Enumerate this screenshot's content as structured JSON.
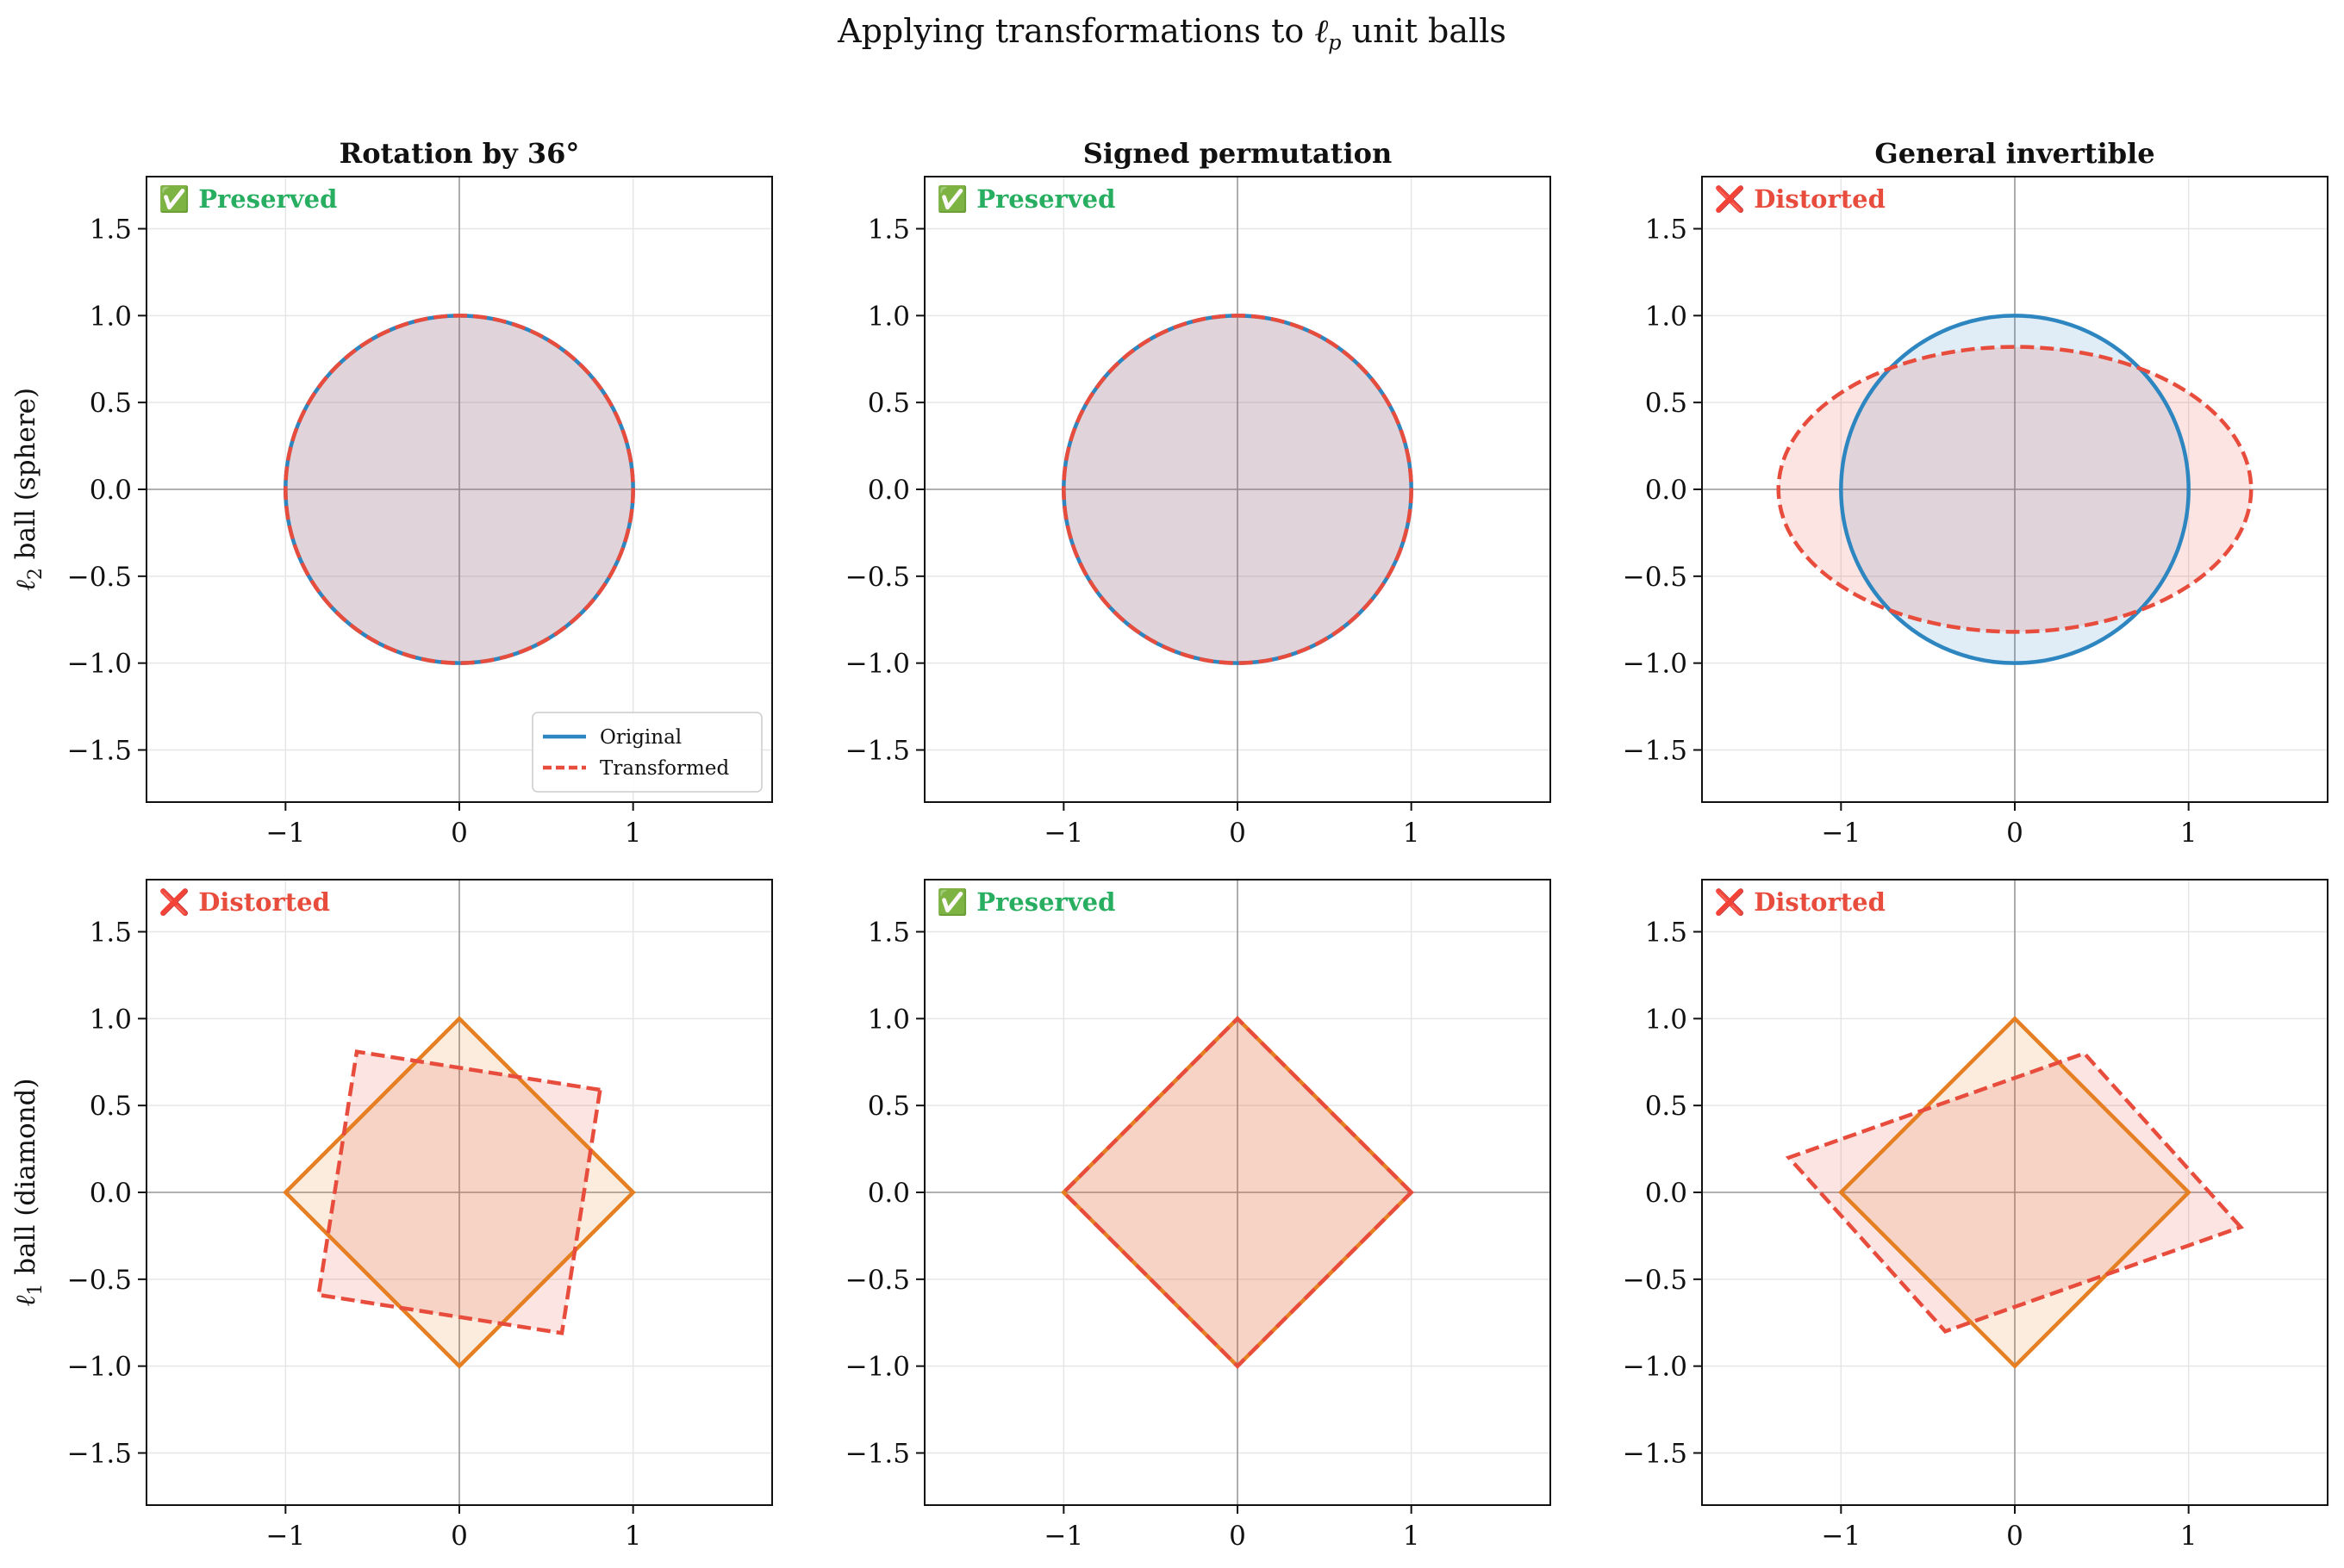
{
  "suptitle": {
    "prefix": "Applying transformations to ",
    "ell": "ℓ",
    "sub": "p",
    "suffix": " unit balls"
  },
  "columns": [
    "Rotation by 36°",
    "Signed permutation",
    "General invertible"
  ],
  "rows": [
    {
      "label_prefix": "ℓ",
      "label_sub": "2",
      "label_suffix": " ball (sphere)",
      "shape": "circle"
    },
    {
      "label_prefix": "ℓ",
      "label_sub": "1",
      "label_suffix": " ball (diamond)",
      "shape": "diamond"
    }
  ],
  "legend": {
    "original": "Original",
    "transformed": "Transformed"
  },
  "colors": {
    "circle": "#2e86c1",
    "diamond": "#e67e22",
    "transformed": "#e74c3c",
    "preserved": "#27ae60",
    "distorted": "#e74c3c"
  },
  "chart_data": [
    {
      "type": "line",
      "row": 0,
      "col": 0,
      "title": "Rotation by 36°",
      "ylabel": "ℓ2 ball (sphere)",
      "status": "Preserved",
      "status_icon": "✅",
      "xlim": [
        -1.8,
        1.8
      ],
      "ylim": [
        -1.8,
        1.8
      ],
      "xticks": [
        -1,
        0,
        1
      ],
      "yticks": [
        -1.5,
        -1.0,
        -0.5,
        0.0,
        0.5,
        1.0,
        1.5
      ],
      "grid": true,
      "legend": "lower right",
      "series": [
        {
          "name": "Original",
          "kind": "ellipse",
          "center": [
            0,
            0
          ],
          "rx": 1.0,
          "ry": 1.0,
          "style": "solid"
        },
        {
          "name": "Transformed",
          "kind": "ellipse",
          "center": [
            0,
            0
          ],
          "rx": 1.0,
          "ry": 1.0,
          "style": "dashed"
        }
      ]
    },
    {
      "type": "line",
      "row": 0,
      "col": 1,
      "title": "Signed permutation",
      "status": "Preserved",
      "status_icon": "✅",
      "xlim": [
        -1.8,
        1.8
      ],
      "ylim": [
        -1.8,
        1.8
      ],
      "xticks": [
        -1,
        0,
        1
      ],
      "yticks": [
        -1.5,
        -1.0,
        -0.5,
        0.0,
        0.5,
        1.0,
        1.5
      ],
      "grid": true,
      "series": [
        {
          "name": "Original",
          "kind": "ellipse",
          "center": [
            0,
            0
          ],
          "rx": 1.0,
          "ry": 1.0,
          "style": "solid"
        },
        {
          "name": "Transformed",
          "kind": "ellipse",
          "center": [
            0,
            0
          ],
          "rx": 1.0,
          "ry": 1.0,
          "style": "dashed"
        }
      ]
    },
    {
      "type": "line",
      "row": 0,
      "col": 2,
      "title": "General invertible",
      "status": "Distorted",
      "status_icon": "❌",
      "xlim": [
        -1.8,
        1.8
      ],
      "ylim": [
        -1.8,
        1.8
      ],
      "xticks": [
        -1,
        0,
        1
      ],
      "yticks": [
        -1.5,
        -1.0,
        -0.5,
        0.0,
        0.5,
        1.0,
        1.5
      ],
      "grid": true,
      "series": [
        {
          "name": "Original",
          "kind": "ellipse",
          "center": [
            0,
            0
          ],
          "rx": 1.0,
          "ry": 1.0,
          "style": "solid"
        },
        {
          "name": "Transformed",
          "kind": "ellipse",
          "center": [
            0,
            0
          ],
          "rx": 1.36,
          "ry": 0.82,
          "style": "dashed"
        }
      ]
    },
    {
      "type": "line",
      "row": 1,
      "col": 0,
      "ylabel": "ℓ1 ball (diamond)",
      "status": "Distorted",
      "status_icon": "❌",
      "xlim": [
        -1.8,
        1.8
      ],
      "ylim": [
        -1.8,
        1.8
      ],
      "xticks": [
        -1,
        0,
        1
      ],
      "yticks": [
        -1.5,
        -1.0,
        -0.5,
        0.0,
        0.5,
        1.0,
        1.5
      ],
      "grid": true,
      "series": [
        {
          "name": "Original",
          "kind": "polygon",
          "points": [
            [
              1,
              0
            ],
            [
              0,
              1
            ],
            [
              -1,
              0
            ],
            [
              0,
              -1
            ]
          ],
          "style": "solid"
        },
        {
          "name": "Transformed",
          "kind": "polygon",
          "points": [
            [
              0.81,
              0.59
            ],
            [
              -0.59,
              0.81
            ],
            [
              -0.81,
              -0.59
            ],
            [
              0.59,
              -0.81
            ]
          ],
          "style": "dashed"
        }
      ]
    },
    {
      "type": "line",
      "row": 1,
      "col": 1,
      "status": "Preserved",
      "status_icon": "✅",
      "xlim": [
        -1.8,
        1.8
      ],
      "ylim": [
        -1.8,
        1.8
      ],
      "xticks": [
        -1,
        0,
        1
      ],
      "yticks": [
        -1.5,
        -1.0,
        -0.5,
        0.0,
        0.5,
        1.0,
        1.5
      ],
      "grid": true,
      "series": [
        {
          "name": "Original",
          "kind": "polygon",
          "points": [
            [
              1,
              0
            ],
            [
              0,
              1
            ],
            [
              -1,
              0
            ],
            [
              0,
              -1
            ]
          ],
          "style": "solid"
        },
        {
          "name": "Transformed",
          "kind": "polygon",
          "points": [
            [
              1,
              0
            ],
            [
              0,
              1
            ],
            [
              -1,
              0
            ],
            [
              0,
              -1
            ]
          ],
          "style": "dashed"
        }
      ]
    },
    {
      "type": "line",
      "row": 1,
      "col": 2,
      "status": "Distorted",
      "status_icon": "❌",
      "xlim": [
        -1.8,
        1.8
      ],
      "ylim": [
        -1.8,
        1.8
      ],
      "xticks": [
        -1,
        0,
        1
      ],
      "yticks": [
        -1.5,
        -1.0,
        -0.5,
        0.0,
        0.5,
        1.0,
        1.5
      ],
      "grid": true,
      "series": [
        {
          "name": "Original",
          "kind": "polygon",
          "points": [
            [
              1,
              0
            ],
            [
              0,
              1
            ],
            [
              -1,
              0
            ],
            [
              0,
              -1
            ]
          ],
          "style": "solid"
        },
        {
          "name": "Transformed",
          "kind": "polygon",
          "points": [
            [
              1.3,
              -0.2
            ],
            [
              0.4,
              0.8
            ],
            [
              -1.3,
              0.2
            ],
            [
              -0.4,
              -0.8
            ]
          ],
          "style": "dashed"
        }
      ]
    }
  ]
}
